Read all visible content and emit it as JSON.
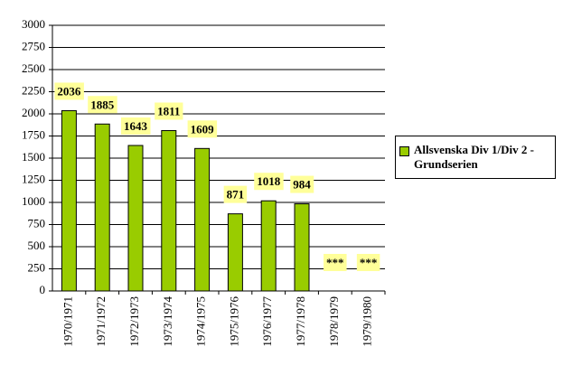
{
  "chart_data": {
    "type": "bar",
    "categories": [
      "1970/1971",
      "1971/1972",
      "1972/1973",
      "1973/1974",
      "1974/1975",
      "1975/1976",
      "1976/1977",
      "1977/1978",
      "1978/1979",
      "1979/1980"
    ],
    "series": [
      {
        "name": "Allsvenska Div 1/Div 2 - Grundserien",
        "color": "#99cc00",
        "values": [
          2036,
          1885,
          1643,
          1811,
          1609,
          871,
          1018,
          984,
          null,
          null
        ],
        "value_labels": [
          "2036",
          "1885",
          "1643",
          "1811",
          "1609",
          "871",
          "1018",
          "984",
          "***",
          "***"
        ]
      }
    ],
    "ylim": [
      0,
      3000
    ],
    "yticks": [
      0,
      250,
      500,
      750,
      1000,
      1250,
      1500,
      1750,
      2000,
      2250,
      2500,
      2750,
      3000
    ],
    "grid": true,
    "legend": "right"
  }
}
